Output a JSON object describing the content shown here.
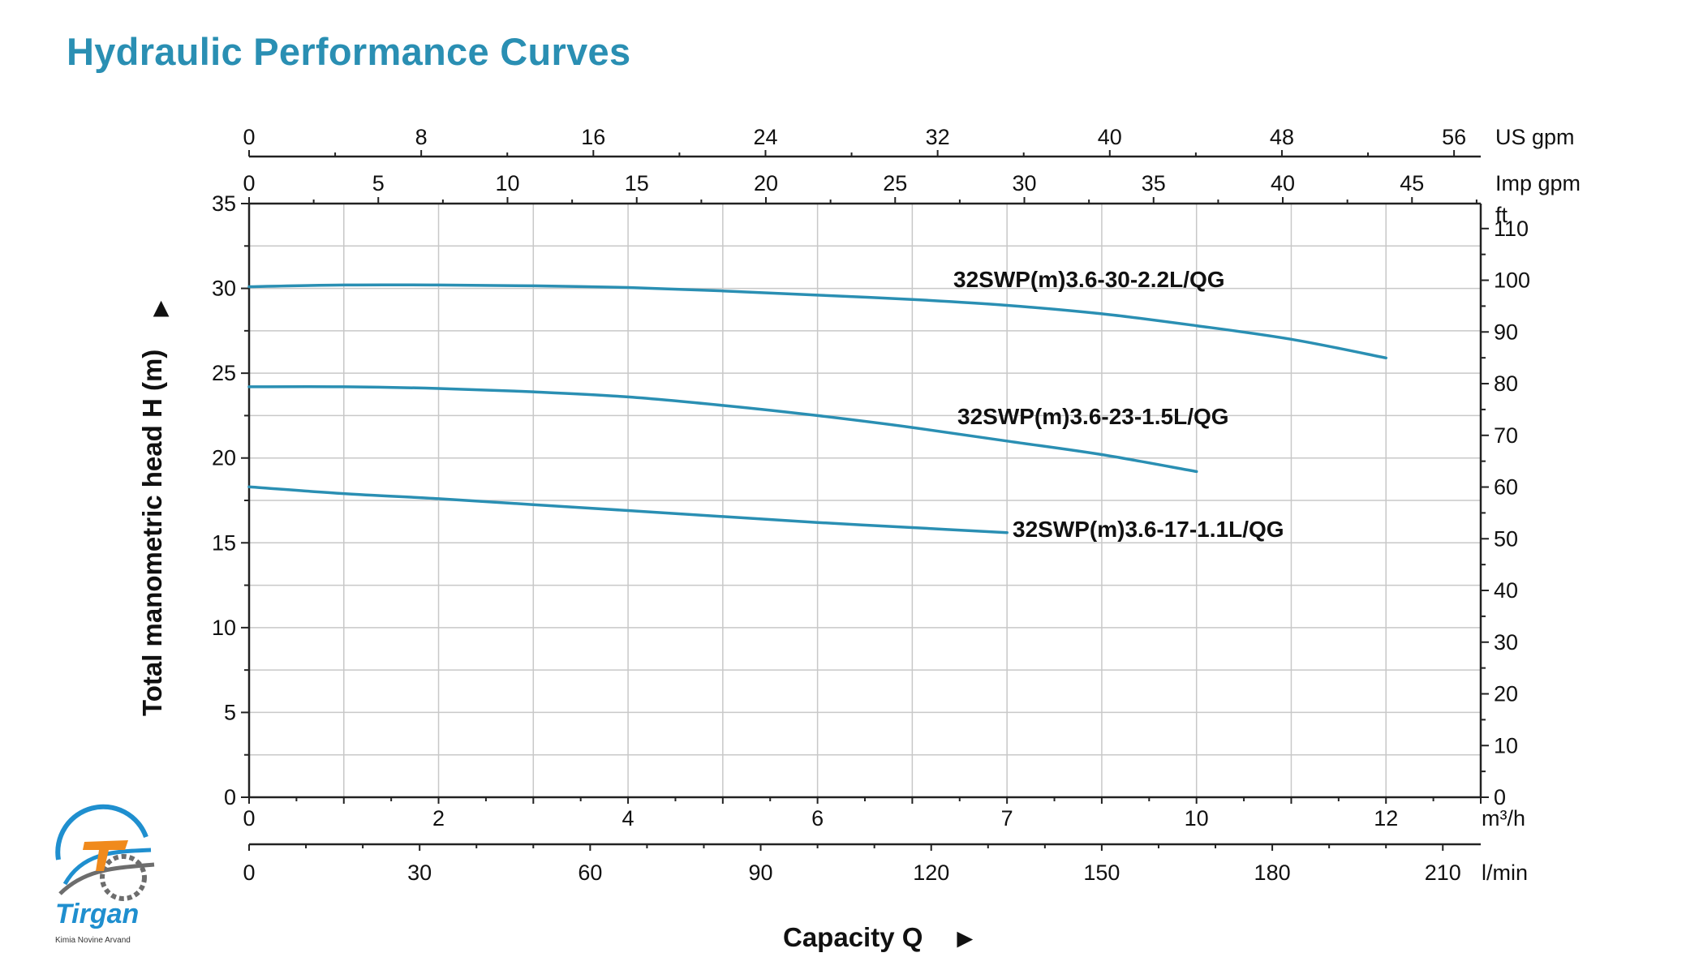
{
  "page": {
    "title": "Hydraulic Performance Curves"
  },
  "logo": {
    "brand": "Tirgan",
    "tagline": "Kimia Novine Arvand"
  },
  "colors": {
    "title": "#2a8fb3",
    "curve": "#2a8fb3",
    "grid": "#c8c8c8",
    "axis": "#222222",
    "logo_blue": "#1f8fcf",
    "logo_orange": "#f08a1c",
    "logo_gray": "#6d6d6d"
  },
  "chart_data": {
    "type": "line",
    "title": "",
    "grid": true,
    "xlabel": "Capacity Q",
    "ylabel": "Total manometric head H (m)",
    "xlabel_arrow": "►",
    "ylabel_arrow": "►",
    "x_unit": "m³/h",
    "xlim": [
      0,
      13
    ],
    "ylim": [
      0,
      35
    ],
    "x_ticks": [
      0,
      2,
      4,
      6,
      7,
      10,
      12
    ],
    "y_ticks": [
      0,
      5,
      10,
      15,
      20,
      25,
      30,
      35
    ],
    "secondary_axes": {
      "lmin": {
        "unit": "l/min",
        "max": 216.67,
        "ticks": [
          0,
          30,
          60,
          90,
          120,
          150,
          180,
          210
        ]
      },
      "imp_gpm": {
        "unit": "Imp gpm",
        "max": 47.66,
        "ticks": [
          0,
          5,
          10,
          15,
          20,
          25,
          30,
          35,
          40,
          45
        ]
      },
      "us_gpm": {
        "unit": "US gpm",
        "max": 57.24,
        "ticks": [
          0,
          8,
          16,
          24,
          32,
          40,
          48,
          56
        ]
      },
      "ft": {
        "unit": "ft",
        "max": 114.83,
        "ticks": [
          0,
          10,
          20,
          30,
          40,
          50,
          60,
          70,
          80,
          90,
          100,
          110
        ]
      }
    },
    "series": [
      {
        "name": "32SWP(m)3.6-30-2.2L/QG",
        "x": [
          0,
          1,
          2,
          3,
          4,
          5,
          6,
          7,
          8,
          9,
          10,
          11,
          12
        ],
        "y": [
          30.1,
          30.2,
          30.2,
          30.15,
          30.05,
          29.85,
          29.6,
          29.35,
          29.0,
          28.5,
          27.8,
          27.0,
          25.9
        ]
      },
      {
        "name": "32SWP(m)3.6-23-1.5L/QG",
        "x": [
          0,
          1,
          2,
          3,
          4,
          5,
          6,
          7,
          8,
          9,
          10
        ],
        "y": [
          24.2,
          24.2,
          24.1,
          23.9,
          23.6,
          23.1,
          22.5,
          21.8,
          21.0,
          20.2,
          19.2
        ]
      },
      {
        "name": "32SWP(m)3.6-17-1.1L/QG",
        "x": [
          0,
          1,
          2,
          3,
          4,
          5,
          6,
          7,
          8
        ],
        "y": [
          18.3,
          17.9,
          17.6,
          17.25,
          16.9,
          16.55,
          16.2,
          15.9,
          15.6
        ]
      }
    ]
  }
}
